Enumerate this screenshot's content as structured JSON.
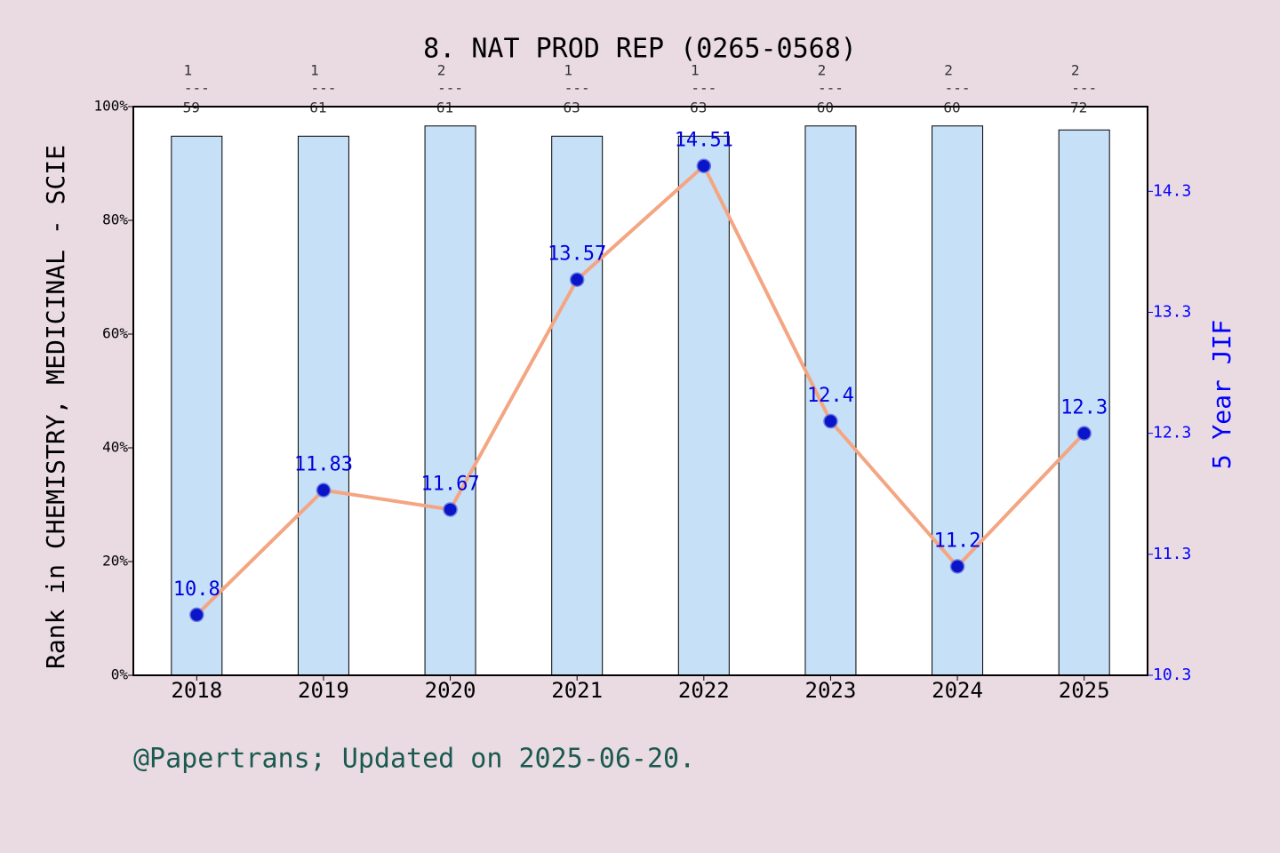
{
  "chart_data": {
    "type": "bar",
    "title": "8. NAT PROD REP (0265-0568)",
    "ylabel": "Rank in CHEMISTRY, MEDICINAL - SCIE",
    "y2label": "5 Year JIF",
    "footer": "@Papertrans; Updated on 2025-06-20.",
    "categories": [
      "2018",
      "2019",
      "2020",
      "2021",
      "2022",
      "2023",
      "2024",
      "2025"
    ],
    "rank": [
      1,
      1,
      2,
      1,
      1,
      2,
      2,
      2
    ],
    "rank_separator": "---",
    "total": [
      59,
      61,
      61,
      63,
      63,
      60,
      60,
      72
    ],
    "series": [
      {
        "type": "bar",
        "color": "#c6e0f7",
        "values": [
          94.8,
          94.8,
          96.6,
          94.8,
          94.8,
          96.6,
          96.6,
          95.9
        ]
      },
      {
        "type": "line",
        "axis": "y2",
        "color": "#f4a582",
        "marker_color": "#0a14c8",
        "label_color": "#0000dd",
        "values": [
          10.8,
          11.83,
          11.67,
          13.57,
          14.51,
          12.4,
          11.2,
          12.3
        ]
      }
    ],
    "ylim": [
      0,
      100
    ],
    "yticks": [
      {
        "value": 0,
        "label": "0%"
      },
      {
        "value": 20,
        "label": "20%"
      },
      {
        "value": 40,
        "label": "40%"
      },
      {
        "value": 60,
        "label": "60%"
      },
      {
        "value": 80,
        "label": "80%"
      },
      {
        "value": 100,
        "label": "100%"
      }
    ],
    "y2lim": [
      10.3,
      15.0
    ],
    "y2ticks": [
      10.3,
      11.3,
      12.3,
      13.3,
      14.3
    ],
    "y2color": "#0000ff"
  }
}
